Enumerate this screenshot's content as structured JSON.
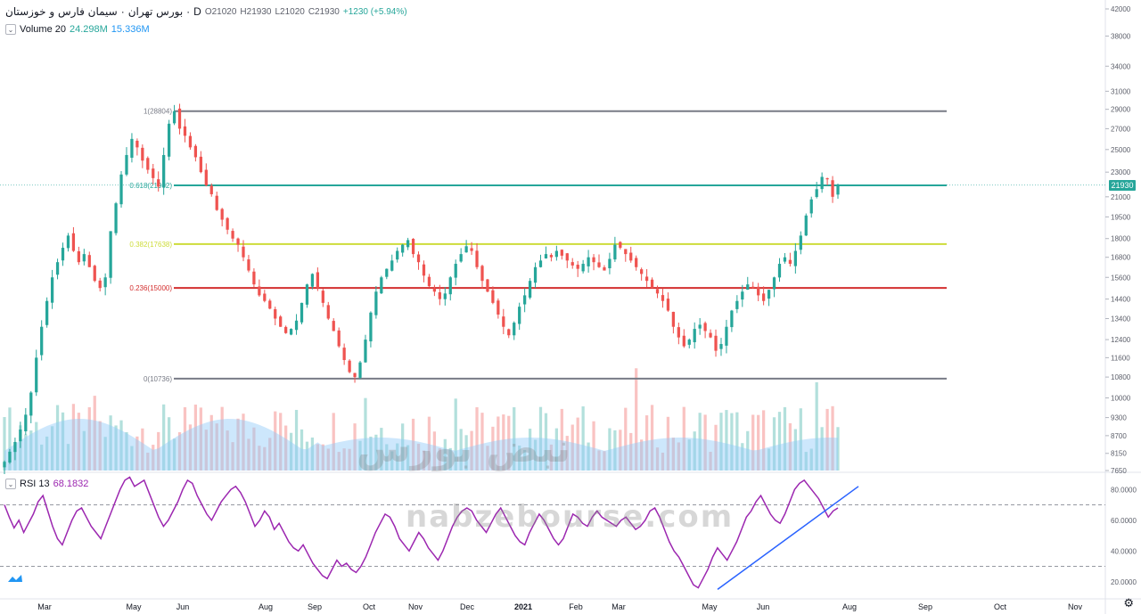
{
  "header": {
    "symbol": "سیمان فارس و خوزستان",
    "exchange": "بورس تهران",
    "interval": "D",
    "ohlc": {
      "o": "O21020",
      "h": "H21930",
      "l": "L21020",
      "c": "C21930"
    },
    "change": "+1230 (+5.94%)"
  },
  "volume_legend": {
    "label": "Volume 20",
    "value": "24.298M",
    "ma": "15.336M"
  },
  "rsi_legend": {
    "label": "RSI 13",
    "value": "68.1832"
  },
  "last_price_badge": "21930",
  "watermark": {
    "site": "nabzebourse.com",
    "brand": "نبض بورس"
  },
  "colors": {
    "up": "#26a69a",
    "down": "#ef5350",
    "fib_236": "#d32f2f",
    "fib_382": "#cddc39",
    "fib_618": "#26a69a",
    "fib_0_1": "#787b86",
    "rsi": "#9c27b0",
    "trendline": "#2962ff",
    "volume_ma": "#90caf9"
  },
  "chart_data": [
    {
      "type": "candlestick",
      "title": "",
      "y_ticks": [
        42000,
        38000,
        34000,
        31000,
        29000,
        27000,
        25000,
        23000,
        21000,
        19500,
        18000,
        16800,
        15600,
        14400,
        13400,
        12400,
        11600,
        10800,
        10000,
        9300,
        8700,
        8150,
        7650
      ],
      "y_scale": "log",
      "ylim": [
        7650,
        42000
      ],
      "x_ticks": [
        "Mar",
        "May",
        "Jun",
        "Aug",
        "Sep",
        "Oct",
        "Nov",
        "Dec",
        "2021",
        "Feb",
        "Mar",
        "May",
        "Jun",
        "Aug",
        "Sep",
        "Oct",
        "Nov"
      ],
      "fib_levels": [
        {
          "label": "1(28804)",
          "value": 28804
        },
        {
          "label": "0.618(21902)",
          "value": 21902
        },
        {
          "label": "0.382(17638)",
          "value": 17638
        },
        {
          "label": "0.236(15000)",
          "value": 15000
        },
        {
          "label": "0(10736)",
          "value": 10736
        }
      ],
      "close_path": [
        7900,
        8200,
        8500,
        8900,
        9400,
        10200,
        11600,
        13000,
        14300,
        15600,
        16500,
        17400,
        18200,
        17200,
        16500,
        17000,
        16200,
        15400,
        15000,
        15600,
        18500,
        20500,
        22800,
        24500,
        26000,
        25200,
        24000,
        23200,
        22500,
        21800,
        24500,
        27500,
        28800,
        27000,
        26300,
        25200,
        24300,
        23000,
        21900,
        21200,
        20000,
        19300,
        18600,
        18000,
        17600,
        16800,
        16000,
        15200,
        14600,
        14300,
        13900,
        13400,
        13000,
        12700,
        12900,
        13300,
        14200,
        15200,
        15800,
        15000,
        14200,
        13400,
        12800,
        12100,
        11500,
        11000,
        10800,
        11400,
        12400,
        13700,
        14800,
        15600,
        16100,
        16600,
        17200,
        17600,
        17900,
        17000,
        16500,
        15700,
        15100,
        14800,
        14400,
        14700,
        15600,
        16400,
        17000,
        17500,
        17200,
        16200,
        15400,
        14800,
        14200,
        13600,
        13000,
        12600,
        13200,
        14000,
        14600,
        15400,
        16200,
        16600,
        17000,
        16800,
        17200,
        16900,
        16600,
        16300,
        16100,
        16400,
        16800,
        16500,
        16200,
        16000,
        16700,
        17600,
        17400,
        17000,
        16600,
        16200,
        15800,
        15400,
        15000,
        14700,
        14300,
        13800,
        13000,
        12500,
        12100,
        12400,
        12900,
        13100,
        12800,
        12500,
        11900,
        12200,
        13000,
        13800,
        14300,
        14800,
        15200,
        15000,
        14600,
        14300,
        14900,
        15600,
        16400,
        16800,
        16400,
        17200,
        18200,
        19600,
        20800,
        21600,
        22600,
        22400,
        21000,
        21930
      ],
      "volume": {
        "label": "Volume 20",
        "last": "24.298M",
        "ma": "15.336M"
      }
    },
    {
      "type": "line",
      "title": "RSI 13",
      "y_ticks": [
        80,
        60,
        40,
        20
      ],
      "y_tick_labels": [
        "80.0000",
        "60.0000",
        "40.0000",
        "20.0000"
      ],
      "ylim": [
        10,
        90
      ],
      "bands": [
        70,
        30
      ],
      "values": [
        70,
        62,
        55,
        60,
        52,
        58,
        64,
        72,
        76,
        66,
        56,
        48,
        44,
        52,
        60,
        66,
        68,
        62,
        56,
        52,
        48,
        56,
        64,
        72,
        80,
        86,
        88,
        82,
        84,
        86,
        78,
        70,
        62,
        56,
        60,
        66,
        72,
        80,
        86,
        84,
        76,
        70,
        64,
        60,
        66,
        72,
        76,
        80,
        82,
        78,
        72,
        64,
        56,
        60,
        66,
        62,
        54,
        58,
        52,
        46,
        42,
        40,
        44,
        38,
        32,
        28,
        24,
        22,
        28,
        34,
        30,
        32,
        28,
        26,
        30,
        36,
        44,
        52,
        58,
        64,
        62,
        56,
        48,
        44,
        40,
        46,
        52,
        48,
        42,
        38,
        34,
        40,
        48,
        56,
        62,
        66,
        68,
        66,
        60,
        56,
        52,
        58,
        64,
        68,
        62,
        56,
        50,
        46,
        44,
        52,
        58,
        64,
        60,
        54,
        48,
        44,
        48,
        56,
        64,
        62,
        58,
        56,
        62,
        66,
        62,
        60,
        58,
        56,
        60,
        62,
        58,
        54,
        56,
        60,
        66,
        68,
        62,
        54,
        46,
        40,
        36,
        30,
        24,
        18,
        16,
        22,
        28,
        36,
        42,
        38,
        34,
        40,
        46,
        54,
        62,
        66,
        72,
        76,
        70,
        64,
        60,
        58,
        64,
        72,
        80,
        84,
        86,
        82,
        78,
        74,
        68,
        62,
        66,
        68
      ],
      "trendline": {
        "from": 15,
        "to": 82
      },
      "last": 68.1832
    }
  ]
}
